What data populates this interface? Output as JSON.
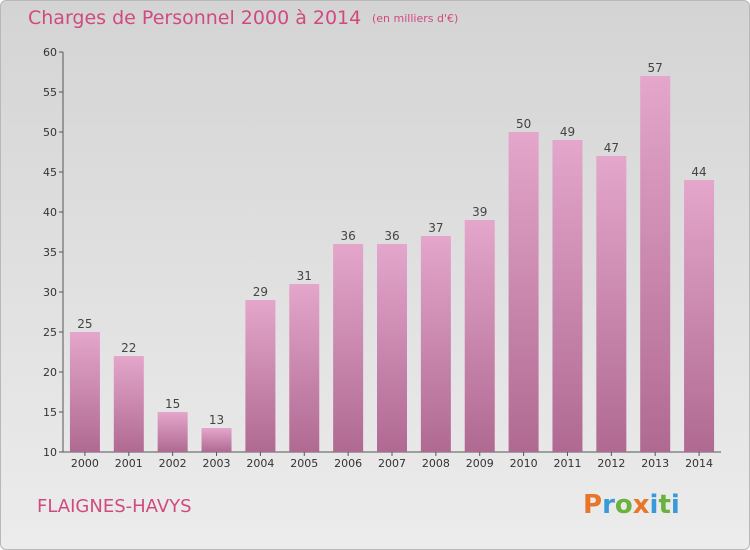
{
  "header": {
    "title": "Charges de Personnel 2000 à 2014",
    "subtitle": "(en milliers d'€)"
  },
  "footer": {
    "commune": "FLAIGNES-HAVYS",
    "logo_letters": [
      "P",
      "r",
      "o",
      "x",
      "i",
      "t",
      "i"
    ],
    "logo_colors": [
      "#e8752a",
      "#3a9ad9",
      "#6ab23e",
      "#e8752a",
      "#3a9ad9",
      "#6ab23e",
      "#3a9ad9"
    ]
  },
  "colors": {
    "bar_top": "#e4a6cb",
    "bar_bottom": "#b06a92",
    "text_accent": "#d04a80"
  },
  "chart_data": {
    "type": "bar",
    "title": "Charges de Personnel 2000 à 2014",
    "subtitle": "(en milliers d'€)",
    "categories": [
      "2000",
      "2001",
      "2002",
      "2003",
      "2004",
      "2005",
      "2006",
      "2007",
      "2008",
      "2009",
      "2010",
      "2011",
      "2012",
      "2013",
      "2014"
    ],
    "values": [
      25,
      22,
      15,
      13,
      29,
      31,
      36,
      36,
      37,
      39,
      50,
      49,
      47,
      57,
      44
    ],
    "ylim": [
      10,
      60
    ],
    "yticks": [
      10,
      15,
      20,
      25,
      30,
      35,
      40,
      45,
      50,
      55,
      60
    ],
    "grid": false
  }
}
